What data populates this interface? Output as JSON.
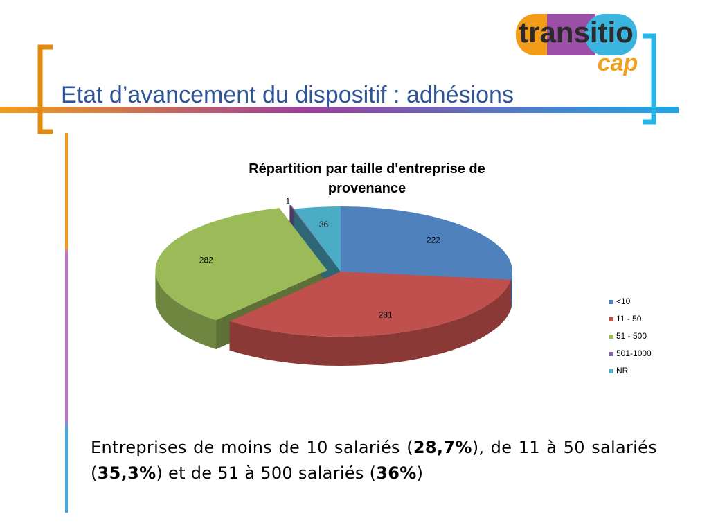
{
  "logo": {
    "word": "transitio",
    "sub": "cap"
  },
  "slide_title": "Etat d’avancement du dispositif : adhésions",
  "chart_data": {
    "type": "pie3d",
    "title": "Répartition par taille d'entreprise de provenance",
    "categories": [
      "<10",
      " 11 - 50",
      "51 - 500",
      "501-1000",
      "NR"
    ],
    "values": [
      222,
      281,
      282,
      1,
      36
    ],
    "colors": [
      "#4f81bd",
      "#c0504d",
      "#9bbb59",
      "#8064a2",
      "#4bacc6"
    ],
    "legend": "right"
  },
  "caption": [
    {
      "text": "Entreprises de moins de 10 salariés (",
      "bold": false
    },
    {
      "text": "28,7%",
      "bold": true
    },
    {
      "text": "), de 11 à 50 salariés (",
      "bold": false
    },
    {
      "text": "35,3%",
      "bold": true
    },
    {
      "text": ") et de 51 à 500 salariés (",
      "bold": false
    },
    {
      "text": "36%",
      "bold": true
    },
    {
      "text": ")",
      "bold": false
    }
  ]
}
